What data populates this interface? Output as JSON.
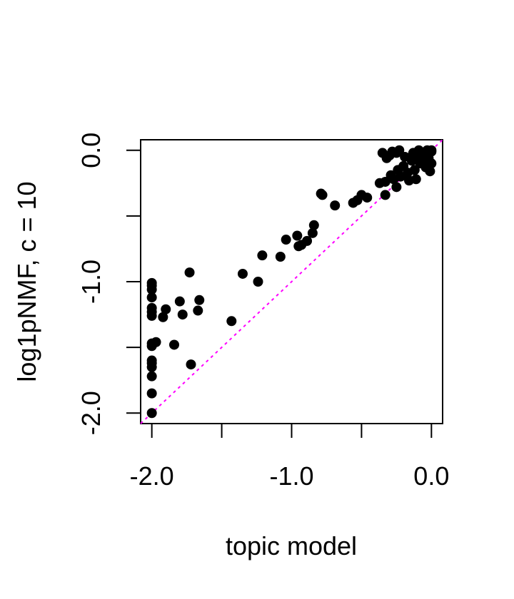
{
  "chart_data": {
    "type": "scatter",
    "title": "",
    "xlabel": "topic model",
    "ylabel": "log1pNMF, c = 10",
    "xlim": [
      -2.08,
      0.08
    ],
    "ylim": [
      -2.08,
      0.08
    ],
    "xticks": [
      -2.0,
      -1.5,
      -1.0,
      -0.5,
      0.0
    ],
    "xtick_labels": [
      "-2.0",
      "",
      "-1.0",
      "",
      "0.0"
    ],
    "yticks": [
      -2.0,
      -1.5,
      -1.0,
      -0.5,
      0.0
    ],
    "ytick_labels": [
      "-2.0",
      "",
      "-1.0",
      "",
      "0.0"
    ],
    "grid": false,
    "legend": "none",
    "reference_line": {
      "slope": 1,
      "intercept": 0,
      "style": "dotted",
      "color": "#ff00ff"
    },
    "point_color": "#000000",
    "points": [
      [
        -2.0,
        -1.01
      ],
      [
        -2.0,
        -1.03
      ],
      [
        -2.0,
        -1.06
      ],
      [
        -2.0,
        -1.12
      ],
      [
        -2.0,
        -1.2
      ],
      [
        -2.0,
        -1.23
      ],
      [
        -2.0,
        -1.26
      ],
      [
        -2.0,
        -1.47
      ],
      [
        -2.0,
        -1.49
      ],
      [
        -2.0,
        -1.6
      ],
      [
        -2.0,
        -1.62
      ],
      [
        -2.0,
        -1.65
      ],
      [
        -2.0,
        -1.72
      ],
      [
        -2.0,
        -1.85
      ],
      [
        -2.0,
        -2.0
      ],
      [
        -1.97,
        -1.46
      ],
      [
        -1.92,
        -1.27
      ],
      [
        -1.9,
        -1.21
      ],
      [
        -1.84,
        -1.48
      ],
      [
        -1.8,
        -1.15
      ],
      [
        -1.78,
        -1.25
      ],
      [
        -1.73,
        -0.93
      ],
      [
        -1.72,
        -1.63
      ],
      [
        -1.67,
        -1.22
      ],
      [
        -1.66,
        -1.14
      ],
      [
        -1.43,
        -1.3
      ],
      [
        -1.35,
        -0.94
      ],
      [
        -1.24,
        -1.0
      ],
      [
        -1.21,
        -0.8
      ],
      [
        -1.08,
        -0.81
      ],
      [
        -1.04,
        -0.68
      ],
      [
        -0.96,
        -0.65
      ],
      [
        -0.95,
        -0.73
      ],
      [
        -0.93,
        -0.72
      ],
      [
        -0.89,
        -0.69
      ],
      [
        -0.85,
        -0.63
      ],
      [
        -0.84,
        -0.57
      ],
      [
        -0.79,
        -0.33
      ],
      [
        -0.78,
        -0.34
      ],
      [
        -0.69,
        -0.42
      ],
      [
        -0.56,
        -0.4
      ],
      [
        -0.53,
        -0.38
      ],
      [
        -0.5,
        -0.34
      ],
      [
        -0.46,
        -0.36
      ],
      [
        -0.37,
        -0.25
      ],
      [
        -0.35,
        -0.02
      ],
      [
        -0.33,
        -0.24
      ],
      [
        -0.33,
        -0.34
      ],
      [
        -0.32,
        -0.06
      ],
      [
        -0.3,
        -0.04
      ],
      [
        -0.29,
        -0.19
      ],
      [
        -0.28,
        -0.01
      ],
      [
        -0.27,
        -0.22
      ],
      [
        -0.25,
        -0.28
      ],
      [
        -0.25,
        -0.02
      ],
      [
        -0.24,
        -0.15
      ],
      [
        -0.23,
        0.0
      ],
      [
        -0.22,
        -0.2
      ],
      [
        -0.2,
        -0.12
      ],
      [
        -0.19,
        -0.05
      ],
      [
        -0.17,
        -0.17
      ],
      [
        -0.16,
        -0.23
      ],
      [
        -0.14,
        -0.08
      ],
      [
        -0.13,
        -0.02
      ],
      [
        -0.12,
        -0.15
      ],
      [
        -0.11,
        -0.22
      ],
      [
        -0.1,
        -0.05
      ],
      [
        -0.09,
        0.0
      ],
      [
        -0.08,
        -0.1
      ],
      [
        -0.06,
        -0.03
      ],
      [
        -0.05,
        -0.09
      ],
      [
        -0.04,
        -0.13
      ],
      [
        -0.03,
        0.0
      ],
      [
        -0.02,
        -0.06
      ],
      [
        -0.01,
        -0.16
      ],
      [
        0.0,
        -0.1
      ],
      [
        0.0,
        -0.01
      ],
      [
        0.0,
        0.0
      ]
    ]
  }
}
